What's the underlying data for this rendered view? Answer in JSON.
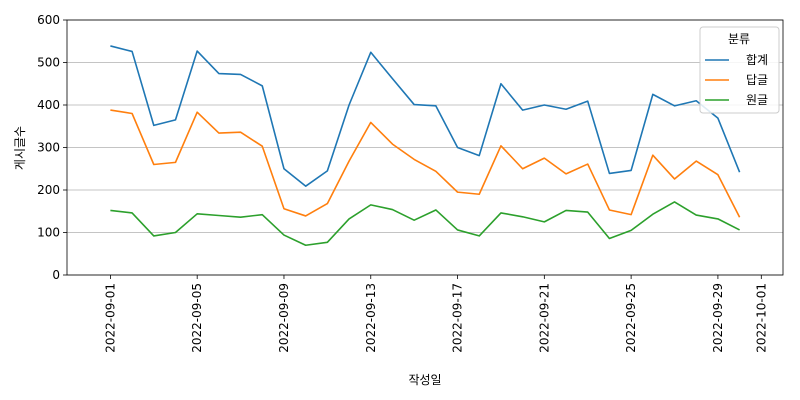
{
  "chart_data": {
    "type": "line",
    "xlabel": "작성일",
    "ylabel": "게시글수",
    "ylim": [
      0,
      600
    ],
    "yticks": [
      "0",
      "100",
      "200",
      "300",
      "400",
      "500",
      "600"
    ],
    "xticks": [
      "2022-09-01",
      "2022-09-05",
      "2022-09-09",
      "2022-09-13",
      "2022-09-17",
      "2022-09-21",
      "2022-09-25",
      "2022-09-29",
      "2022-10-01"
    ],
    "x": [
      "2022-09-01",
      "2022-09-02",
      "2022-09-03",
      "2022-09-04",
      "2022-09-05",
      "2022-09-06",
      "2022-09-07",
      "2022-09-08",
      "2022-09-09",
      "2022-09-10",
      "2022-09-11",
      "2022-09-12",
      "2022-09-13",
      "2022-09-14",
      "2022-09-15",
      "2022-09-16",
      "2022-09-17",
      "2022-09-18",
      "2022-09-19",
      "2022-09-20",
      "2022-09-21",
      "2022-09-22",
      "2022-09-23",
      "2022-09-24",
      "2022-09-25",
      "2022-09-26",
      "2022-09-27",
      "2022-09-28",
      "2022-09-29",
      "2022-09-30"
    ],
    "grid": "horizontal",
    "legend": {
      "title": "분류",
      "placement": "top-right"
    },
    "series": [
      {
        "name": "합계",
        "color": "#1f77b4",
        "values": [
          539,
          526,
          352,
          365,
          527,
          474,
          472,
          445,
          250,
          209,
          245,
          400,
          524,
          462,
          401,
          398,
          300,
          281,
          450,
          388,
          400,
          390,
          409,
          239,
          246,
          425,
          398,
          410,
          369,
          242
        ]
      },
      {
        "name": "답글",
        "color": "#ff7f0e",
        "values": [
          388,
          380,
          260,
          265,
          383,
          334,
          336,
          303,
          156,
          139,
          168,
          268,
          359,
          308,
          272,
          244,
          195,
          190,
          304,
          250,
          275,
          238,
          261,
          153,
          142,
          282,
          226,
          268,
          236,
          136
        ]
      },
      {
        "name": "원글",
        "color": "#2ca02c",
        "values": [
          152,
          146,
          92,
          100,
          144,
          140,
          136,
          142,
          94,
          70,
          77,
          132,
          165,
          154,
          129,
          153,
          106,
          92,
          146,
          137,
          125,
          152,
          148,
          86,
          105,
          143,
          172,
          141,
          132,
          106
        ]
      }
    ]
  }
}
